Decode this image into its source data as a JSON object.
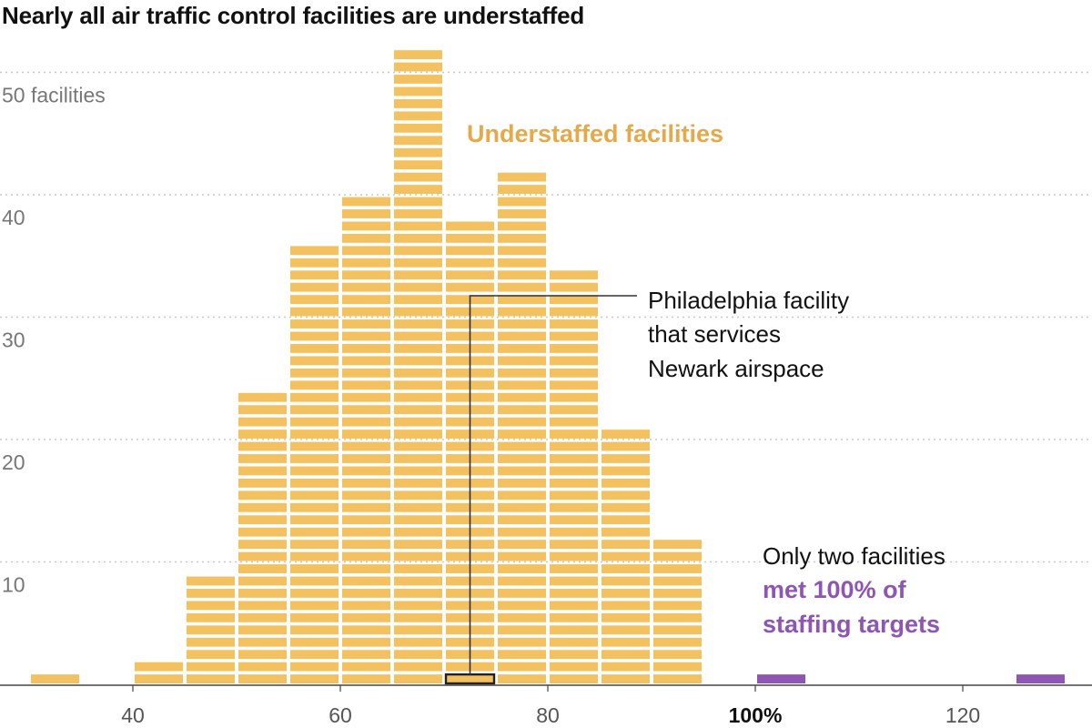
{
  "chart_data": {
    "type": "bar",
    "title": "Nearly all air traffic control facilities are understaffed",
    "xlabel": "",
    "ylabel": "",
    "x_ticks": [
      {
        "value": 40,
        "label": "40",
        "bold": false
      },
      {
        "value": 60,
        "label": "60",
        "bold": false
      },
      {
        "value": 80,
        "label": "80",
        "bold": false
      },
      {
        "value": 100,
        "label": "100%",
        "bold": true
      },
      {
        "value": 120,
        "label": "120",
        "bold": false
      }
    ],
    "y_ticks": [
      {
        "value": 10,
        "label": "10"
      },
      {
        "value": 20,
        "label": "20"
      },
      {
        "value": 30,
        "label": "30"
      },
      {
        "value": 40,
        "label": "40"
      },
      {
        "value": 50,
        "label": "50 facilities"
      }
    ],
    "xlim": [
      28,
      132
    ],
    "ylim": [
      0,
      53
    ],
    "grid": "horizontal dotted",
    "series": [
      {
        "name": "Understaffed facilities",
        "color": "#f3c15f",
        "bins": [
          {
            "x0": 30,
            "x1": 35,
            "value": 1
          },
          {
            "x0": 40,
            "x1": 45,
            "value": 2
          },
          {
            "x0": 45,
            "x1": 50,
            "value": 9
          },
          {
            "x0": 50,
            "x1": 55,
            "value": 24
          },
          {
            "x0": 55,
            "x1": 60,
            "value": 36
          },
          {
            "x0": 60,
            "x1": 65,
            "value": 40
          },
          {
            "x0": 65,
            "x1": 70,
            "value": 52
          },
          {
            "x0": 70,
            "x1": 75,
            "value": 38
          },
          {
            "x0": 75,
            "x1": 80,
            "value": 42
          },
          {
            "x0": 80,
            "x1": 85,
            "value": 34
          },
          {
            "x0": 85,
            "x1": 90,
            "value": 21
          },
          {
            "x0": 90,
            "x1": 95,
            "value": 12
          }
        ]
      },
      {
        "name": "met 100% of staffing targets",
        "color": "#8e55b5",
        "bins": [
          {
            "x0": 100,
            "x1": 105,
            "value": 1
          },
          {
            "x0": 125,
            "x1": 130,
            "value": 1
          }
        ]
      }
    ],
    "highlight": {
      "x0": 70,
      "x1": 75,
      "row": 1,
      "stroke": "#222222"
    },
    "annotations": {
      "understaffed_label": "Understaffed facilities",
      "philadelphia_lines": [
        "Philadelphia facility",
        "that services",
        "Newark airspace"
      ],
      "only_two_line1": "Only two facilities",
      "only_two_line2": "met 100% of",
      "only_two_line3": "staffing targets"
    }
  }
}
